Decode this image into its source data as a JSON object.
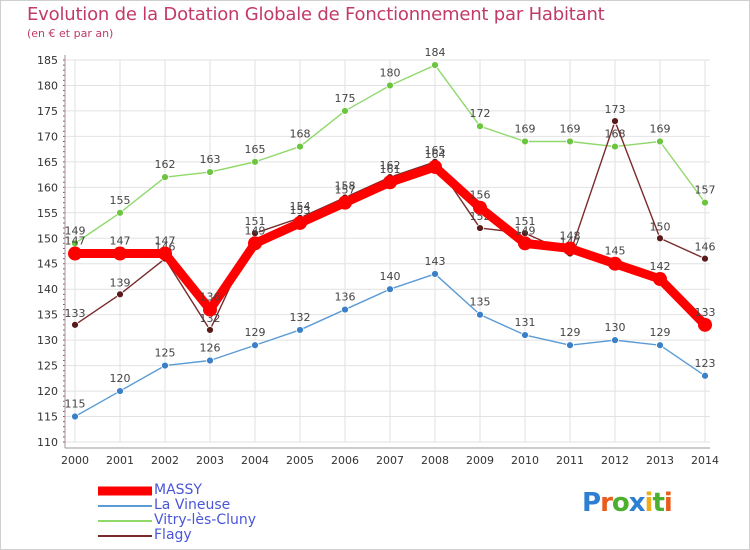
{
  "header": {
    "title": "Evolution de la Dotation Globale de Fonctionnement par Habitant",
    "subtitle": "(en € et par an)"
  },
  "logo": {
    "text": "Proxiti",
    "letter_colors": [
      "#2c7fd1",
      "#e85c1c",
      "#4caf2f",
      "#2c7fd1",
      "#e8b01c",
      "#4caf2f",
      "#e85c1c"
    ]
  },
  "chart_data": {
    "type": "line",
    "title": "Evolution de la Dotation Globale de Fonctionnement par Habitant",
    "subtitle": "(en € et par an)",
    "x": [
      "2000",
      "2001",
      "2002",
      "2003",
      "2004",
      "2005",
      "2006",
      "2007",
      "2008",
      "2009",
      "2010",
      "2011",
      "2012",
      "2013",
      "2014"
    ],
    "ylim": [
      110,
      185
    ],
    "yticks": [
      110,
      115,
      120,
      125,
      130,
      135,
      140,
      145,
      150,
      155,
      160,
      165,
      170,
      175,
      180,
      185
    ],
    "grid": true,
    "legend_position": "bottom-left",
    "series": [
      {
        "name": "MASSY",
        "color": "#ff0000",
        "values": [
          147,
          147,
          147,
          136,
          149,
          153,
          157,
          161,
          164,
          156,
          149,
          148,
          145,
          142,
          133
        ]
      },
      {
        "name": "La Vineuse",
        "color": "#5b9bd5",
        "values": [
          115,
          120,
          125,
          126,
          129,
          132,
          136,
          140,
          143,
          135,
          131,
          129,
          130,
          129,
          123
        ]
      },
      {
        "name": "Vitry-lès-Cluny",
        "color": "#8fd86a",
        "values": [
          149,
          155,
          162,
          163,
          165,
          168,
          175,
          180,
          184,
          172,
          169,
          169,
          168,
          169,
          157
        ]
      },
      {
        "name": "Flagy",
        "color": "#7a2a2a",
        "values": [
          133,
          139,
          146,
          132,
          151,
          154,
          158,
          162,
          165,
          152,
          151,
          147,
          173,
          150,
          146
        ]
      }
    ]
  }
}
